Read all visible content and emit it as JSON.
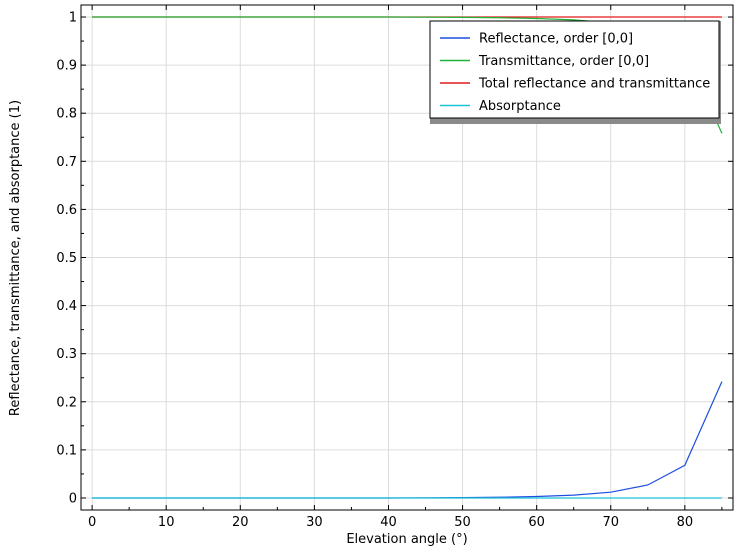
{
  "chart_data": {
    "type": "line",
    "title": "",
    "xlabel": "Elevation angle (°)",
    "ylabel": "Reflectance, transmittance, and absorptance (1)",
    "xlim": [
      -1.5,
      86.5
    ],
    "ylim": [
      -0.025,
      1.025
    ],
    "xticks": [
      0,
      10,
      20,
      30,
      40,
      50,
      60,
      70,
      80
    ],
    "yticks": [
      0,
      0.1,
      0.2,
      0.3,
      0.4,
      0.5,
      0.6,
      0.7,
      0.8,
      0.9,
      1
    ],
    "grid": true,
    "legend_position": "top-right",
    "x": [
      0,
      5,
      10,
      15,
      20,
      25,
      30,
      35,
      40,
      45,
      50,
      55,
      60,
      65,
      70,
      75,
      80,
      85
    ],
    "series": [
      {
        "name": "Reflectance, order [0,0]",
        "color": "#1f4fe0",
        "values": [
          0,
          0,
          0,
          0,
          0,
          0,
          0,
          0,
          0,
          0.0003,
          0.0007,
          0.0015,
          0.003,
          0.006,
          0.012,
          0.027,
          0.068,
          0.242
        ]
      },
      {
        "name": "Transmittance, order [0,0]",
        "color": "#22b33a",
        "values": [
          1,
          1,
          1,
          1,
          1,
          1,
          1,
          1,
          1,
          0.9997,
          0.9993,
          0.9985,
          0.997,
          0.994,
          0.988,
          0.973,
          0.932,
          0.758
        ]
      },
      {
        "name": "Total reflectance and transmittance",
        "color": "#e01b1b",
        "values": [
          1,
          1,
          1,
          1,
          1,
          1,
          1,
          1,
          1,
          1,
          1,
          1,
          1,
          1,
          1,
          1,
          1,
          1
        ]
      },
      {
        "name": "Absorptance",
        "color": "#19c3d6",
        "values": [
          0,
          0,
          0,
          0,
          0,
          0,
          0,
          0,
          0,
          0,
          0,
          0,
          0,
          0,
          0,
          0,
          0,
          0
        ]
      }
    ]
  }
}
